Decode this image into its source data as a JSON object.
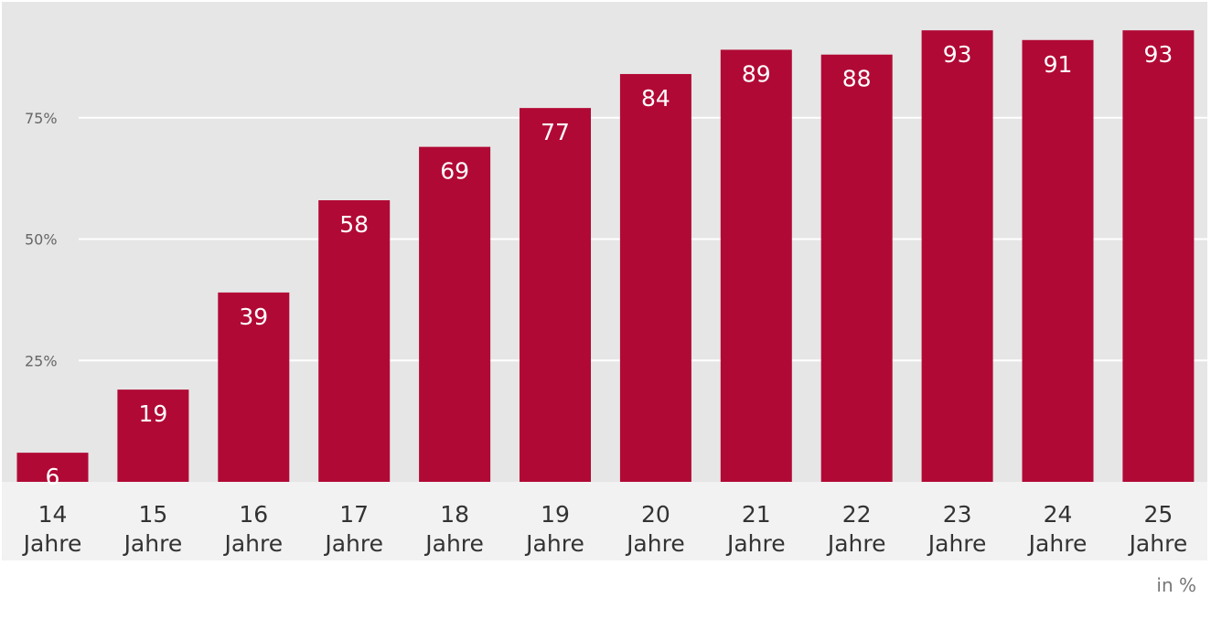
{
  "chart_data": {
    "type": "bar",
    "categories": [
      [
        "14",
        "Jahre"
      ],
      [
        "15",
        "Jahre"
      ],
      [
        "16",
        "Jahre"
      ],
      [
        "17",
        "Jahre"
      ],
      [
        "18",
        "Jahre"
      ],
      [
        "19",
        "Jahre"
      ],
      [
        "20",
        "Jahre"
      ],
      [
        "21",
        "Jahre"
      ],
      [
        "22",
        "Jahre"
      ],
      [
        "23",
        "Jahre"
      ],
      [
        "24",
        "Jahre"
      ],
      [
        "25",
        "Jahre"
      ]
    ],
    "values": [
      6,
      19,
      39,
      58,
      69,
      77,
      84,
      89,
      88,
      93,
      91,
      93
    ],
    "data_labels": [
      "6",
      "19",
      "39",
      "58",
      "69",
      "77",
      "84",
      "89",
      "88",
      "93",
      "91",
      "93"
    ],
    "y_ticks": [
      {
        "value": 25,
        "label": "25%"
      },
      {
        "value": 50,
        "label": "50%"
      },
      {
        "value": 75,
        "label": "75%"
      }
    ],
    "ylim": [
      0,
      100
    ],
    "grid": true,
    "legend": "none",
    "unit_note": "in %",
    "colors": {
      "bar": "#b10935",
      "plot_background": "#e6e6e6",
      "category_band": "#f2f2f2",
      "grid": "#ffffff"
    }
  }
}
